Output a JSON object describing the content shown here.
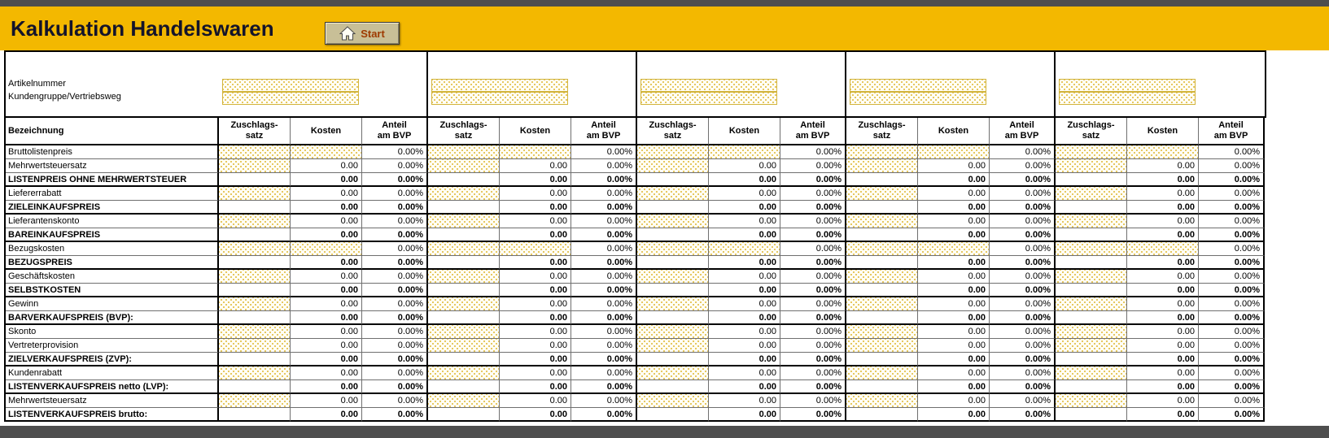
{
  "header": {
    "title": "Kalkulation Handelswaren",
    "start_button_label": "Start"
  },
  "colors": {
    "band": "#f3b800",
    "frame_bar": "#4e4e4e",
    "hatch_dot": "#e2c04a",
    "title_text": "#14142b",
    "start_text": "#9e3a00"
  },
  "form": {
    "labels": [
      "Artikelnummer",
      "Kundengruppe/Vertriebsweg"
    ]
  },
  "table": {
    "corner_header": "Bezeichnung",
    "group_count": 5,
    "columns": [
      [
        "Zuschlags-",
        "satz"
      ],
      [
        "Kosten"
      ],
      [
        "Anteil",
        "am BVP"
      ]
    ],
    "rows": [
      {
        "label": "Bruttolistenpreis",
        "bold": false,
        "thick": false,
        "cells": [
          "input",
          "input",
          "0.00%"
        ]
      },
      {
        "label": "Mehrwertsteuersatz",
        "bold": false,
        "thick": false,
        "cells": [
          "input",
          "0.00",
          "0.00%"
        ]
      },
      {
        "label": "LISTENPREIS OHNE MEHRWERTSTEUER",
        "bold": true,
        "thick": true,
        "cells": [
          "",
          "0.00",
          "0.00%"
        ]
      },
      {
        "label": "Liefererrabatt",
        "bold": false,
        "thick": false,
        "cells": [
          "input",
          "0.00",
          "0.00%"
        ]
      },
      {
        "label": "ZIELEINKAUFSPREIS",
        "bold": true,
        "thick": true,
        "cells": [
          "",
          "0.00",
          "0.00%"
        ]
      },
      {
        "label": "Lieferantenskonto",
        "bold": false,
        "thick": false,
        "cells": [
          "input",
          "0.00",
          "0.00%"
        ]
      },
      {
        "label": "BAREINKAUFSPREIS",
        "bold": true,
        "thick": true,
        "cells": [
          "",
          "0.00",
          "0.00%"
        ]
      },
      {
        "label": "Bezugskosten",
        "bold": false,
        "thick": false,
        "cells": [
          "input",
          "input",
          "0.00%"
        ]
      },
      {
        "label": "BEZUGSPREIS",
        "bold": true,
        "thick": true,
        "cells": [
          "",
          "0.00",
          "0.00%"
        ]
      },
      {
        "label": "Geschäftskosten",
        "bold": false,
        "thick": false,
        "cells": [
          "input",
          "0.00",
          "0.00%"
        ]
      },
      {
        "label": "SELBSTKOSTEN",
        "bold": true,
        "thick": true,
        "cells": [
          "",
          "0.00",
          "0.00%"
        ]
      },
      {
        "label": "Gewinn",
        "bold": false,
        "thick": false,
        "cells": [
          "input",
          "0.00",
          "0.00%"
        ]
      },
      {
        "label": "BARVERKAUFSPREIS (BVP):",
        "bold": true,
        "thick": true,
        "cells": [
          "",
          "0.00",
          "0.00%"
        ]
      },
      {
        "label": "Skonto",
        "bold": false,
        "thick": false,
        "cells": [
          "input",
          "0.00",
          "0.00%"
        ]
      },
      {
        "label": "Vertreterprovision",
        "bold": false,
        "thick": false,
        "cells": [
          "input",
          "0.00",
          "0.00%"
        ]
      },
      {
        "label": "ZIELVERKAUFSPREIS (ZVP):",
        "bold": true,
        "thick": true,
        "cells": [
          "",
          "0.00",
          "0.00%"
        ]
      },
      {
        "label": "Kundenrabatt",
        "bold": false,
        "thick": false,
        "cells": [
          "input",
          "0.00",
          "0.00%"
        ]
      },
      {
        "label": "LISTENVERKAUFSPREIS netto (LVP):",
        "bold": true,
        "thick": true,
        "cells": [
          "",
          "0.00",
          "0.00%"
        ]
      },
      {
        "label": "Mehrwertsteuersatz",
        "bold": false,
        "thick": false,
        "cells": [
          "input",
          "0.00",
          "0.00%"
        ]
      },
      {
        "label": "LISTENVERKAUFSPREIS brutto:",
        "bold": true,
        "thick": true,
        "cells": [
          "",
          "0.00",
          "0.00%"
        ]
      }
    ]
  }
}
